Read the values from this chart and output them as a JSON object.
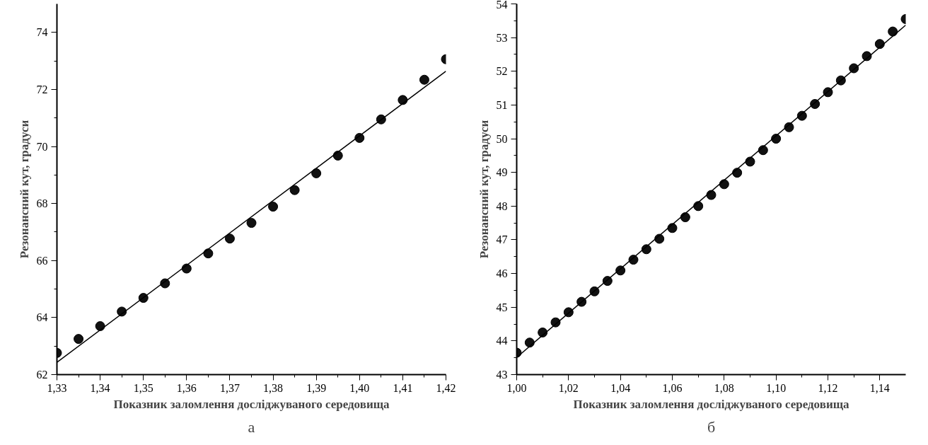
{
  "chart_data": [
    {
      "type": "scatter",
      "xlabel": "Показник заломлення досліджуваного середовища",
      "ylabel": "Резонансний кут, градуси",
      "xlim": [
        1.33,
        1.42
      ],
      "ylim": [
        62,
        75
      ],
      "xticks": [
        {
          "value": 1.33,
          "label": "1,33"
        },
        {
          "value": 1.34,
          "label": "1,34"
        },
        {
          "value": 1.35,
          "label": "1,35"
        },
        {
          "value": 1.36,
          "label": "1,36"
        },
        {
          "value": 1.37,
          "label": "1,37"
        },
        {
          "value": 1.38,
          "label": "1,38"
        },
        {
          "value": 1.39,
          "label": "1,39"
        },
        {
          "value": 1.4,
          "label": "1,40"
        },
        {
          "value": 1.41,
          "label": "1,41"
        },
        {
          "value": 1.42,
          "label": "1,42"
        }
      ],
      "yticks": [
        62,
        64,
        66,
        68,
        70,
        72,
        74
      ],
      "grid": false,
      "annotations": [
        "а"
      ],
      "series": [
        {
          "marker": "circle",
          "color": "#111111",
          "x": [
            1.33,
            1.335,
            1.34,
            1.345,
            1.35,
            1.355,
            1.36,
            1.365,
            1.37,
            1.375,
            1.38,
            1.385,
            1.39,
            1.395,
            1.4,
            1.405,
            1.41,
            1.415,
            1.42
          ],
          "values": [
            62.76,
            63.25,
            63.7,
            64.21,
            64.69,
            65.2,
            65.72,
            66.25,
            66.77,
            67.32,
            67.89,
            68.47,
            69.06,
            69.68,
            70.3,
            70.95,
            71.63,
            72.34,
            73.06
          ]
        },
        {
          "type": "line",
          "color": "#000000",
          "x": [
            1.33,
            1.42
          ],
          "values": [
            62.43,
            72.64
          ]
        }
      ]
    },
    {
      "type": "scatter",
      "xlabel": "Показник заломлення досліджуваного середовища",
      "ylabel": "Резонансний кут, градуси",
      "xlim": [
        1.0,
        1.15
      ],
      "ylim": [
        43,
        54
      ],
      "xticks": [
        {
          "value": 1.0,
          "label": "1,00"
        },
        {
          "value": 1.02,
          "label": "1,02"
        },
        {
          "value": 1.04,
          "label": "1,04"
        },
        {
          "value": 1.06,
          "label": "1,06"
        },
        {
          "value": 1.08,
          "label": "1,08"
        },
        {
          "value": 1.1,
          "label": "1,10"
        },
        {
          "value": 1.12,
          "label": "1,12"
        },
        {
          "value": 1.14,
          "label": "1,14"
        }
      ],
      "yticks": [
        43,
        44,
        45,
        46,
        47,
        48,
        49,
        50,
        51,
        52,
        53,
        54
      ],
      "grid": false,
      "annotations": [
        "б"
      ],
      "series": [
        {
          "marker": "circle",
          "color": "#111111",
          "x": [
            1.0,
            1.005,
            1.01,
            1.015,
            1.02,
            1.025,
            1.03,
            1.035,
            1.04,
            1.045,
            1.05,
            1.055,
            1.06,
            1.065,
            1.07,
            1.075,
            1.08,
            1.085,
            1.09,
            1.095,
            1.1,
            1.105,
            1.11,
            1.115,
            1.12,
            1.125,
            1.13,
            1.135,
            1.14,
            1.145,
            1.15
          ],
          "values": [
            43.65,
            43.95,
            44.25,
            44.55,
            44.85,
            45.16,
            45.47,
            45.78,
            46.09,
            46.41,
            46.72,
            47.03,
            47.35,
            47.67,
            48.0,
            48.33,
            48.65,
            48.99,
            49.32,
            49.66,
            50.0,
            50.34,
            50.68,
            51.03,
            51.38,
            51.73,
            52.09,
            52.45,
            52.81,
            53.18,
            53.55
          ]
        },
        {
          "type": "line",
          "color": "#000000",
          "x": [
            1.0,
            1.15
          ],
          "values": [
            43.51,
            53.37
          ]
        }
      ]
    }
  ]
}
